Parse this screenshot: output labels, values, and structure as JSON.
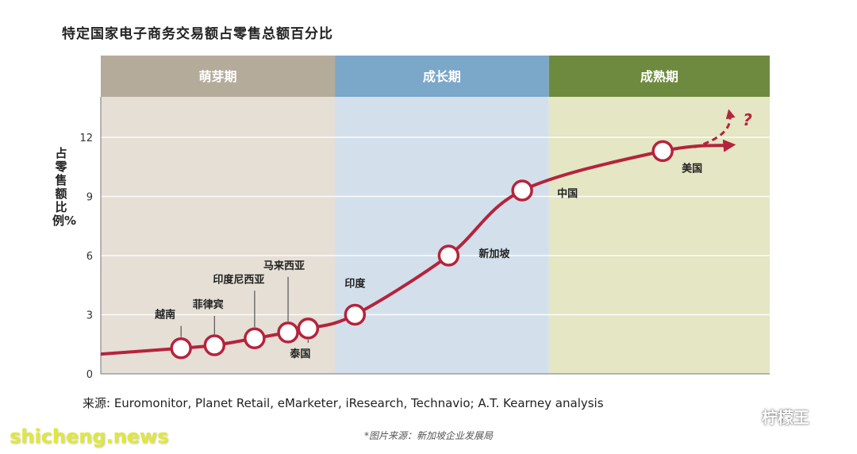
{
  "title": "特定国家电子商务交易额占零售总额百分比",
  "source": "来源: Euromonitor, Planet Retail, eMarketer, iResearch, Technavio; A.T. Kearney analysis",
  "caption": "*图片来源：新加坡企业发展局",
  "watermark_left": "shicheng.news",
  "watermark_right": "柠檬王",
  "colors": {
    "curve": "#b5233c",
    "phase1_header": "#b5ab9a",
    "phase1_body": "#e5dfd5",
    "phase2_header": "#7ba7c9",
    "phase2_body": "#d3e0ec",
    "phase3_header": "#6e8a3e",
    "phase3_body": "#e4e6c4"
  },
  "chart_data": {
    "type": "line",
    "title": "特定国家电子商务交易额占零售总额百分比",
    "ylabel": "占零售额比例%",
    "yticks": [
      "0",
      "3",
      "6",
      "9",
      "12"
    ],
    "ylim": [
      0,
      15
    ],
    "phases": [
      {
        "label": "萌芽期",
        "x_range": [
          0,
          0.35
        ]
      },
      {
        "label": "成长期",
        "x_range": [
          0.35,
          0.67
        ]
      },
      {
        "label": "成熟期",
        "x_range": [
          0.67,
          1.0
        ]
      }
    ],
    "points": [
      {
        "label": "越南",
        "x": 0.12,
        "y": 1.3
      },
      {
        "label": "菲律宾",
        "x": 0.17,
        "y": 1.45
      },
      {
        "label": "印度尼西亚",
        "x": 0.23,
        "y": 1.8
      },
      {
        "label": "马来西亚",
        "x": 0.28,
        "y": 2.1
      },
      {
        "label": "泰国",
        "x": 0.31,
        "y": 2.3
      },
      {
        "label": "印度",
        "x": 0.38,
        "y": 3.0
      },
      {
        "label": "新加坡",
        "x": 0.52,
        "y": 6.0
      },
      {
        "label": "中国",
        "x": 0.63,
        "y": 9.3
      },
      {
        "label": "美国",
        "x": 0.84,
        "y": 11.3
      }
    ],
    "annotations": [
      "?"
    ],
    "grid": true
  }
}
